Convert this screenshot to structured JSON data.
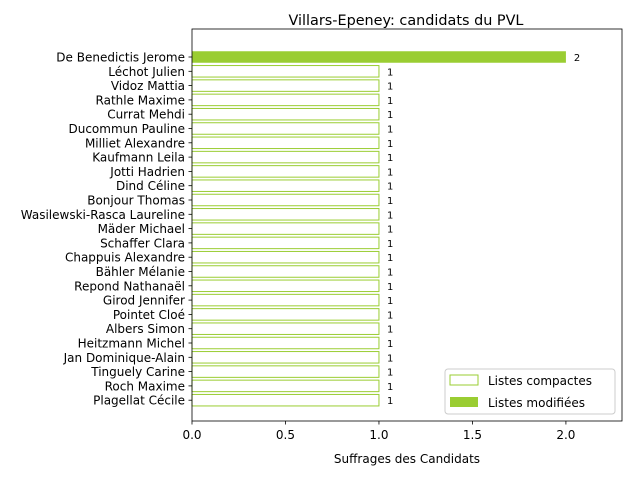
{
  "chart_data": {
    "type": "bar",
    "orientation": "horizontal",
    "title": "Villars-Epeney: candidats du PVL",
    "xlabel": "Suffrages des Candidats",
    "ylabel": "",
    "xlim": [
      0,
      2.3
    ],
    "xticks": [
      "0.0",
      "0.5",
      "1.0",
      "1.5",
      "2.0"
    ],
    "xtick_values": [
      0,
      0.5,
      1.0,
      1.5,
      2.0
    ],
    "grid": false,
    "legend_position": "lower-right",
    "categories": [
      "De Benedictis Jerome",
      "Léchot Julien",
      "Vidoz Mattia",
      "Rathle Maxime",
      "Currat Mehdi",
      "Ducommun Pauline",
      "Milliet Alexandre",
      "Kaufmann Leila",
      "Jotti Hadrien",
      "Dind Céline",
      "Bonjour Thomas",
      "Wasilewski-Rasca Laureline",
      "Mäder Michael",
      "Schaffer Clara",
      "Chappuis Alexandre",
      "Bähler Mélanie",
      "Repond Nathanaël",
      "Girod Jennifer",
      "Pointet Cloé",
      "Albers Simon",
      "Heitzmann Michel",
      "Jan Dominique-Alain",
      "Tinguely Carine",
      "Roch Maxime",
      "Plagellat Cécile"
    ],
    "series": [
      {
        "name": "Listes compactes",
        "color": "#9acd32",
        "style": "outline",
        "values": [
          0,
          1,
          1,
          1,
          1,
          1,
          1,
          1,
          1,
          1,
          1,
          1,
          1,
          1,
          1,
          1,
          1,
          1,
          1,
          1,
          1,
          1,
          1,
          1,
          1
        ]
      },
      {
        "name": "Listes modifiées",
        "color": "#9acd32",
        "style": "filled",
        "values": [
          2,
          0,
          0,
          0,
          0,
          0,
          0,
          0,
          0,
          0,
          0,
          0,
          0,
          0,
          0,
          0,
          0,
          0,
          0,
          0,
          0,
          0,
          0,
          0,
          0
        ]
      }
    ],
    "data_labels": [
      "2",
      "1",
      "1",
      "1",
      "1",
      "1",
      "1",
      "1",
      "1",
      "1",
      "1",
      "1",
      "1",
      "1",
      "1",
      "1",
      "1",
      "1",
      "1",
      "1",
      "1",
      "1",
      "1",
      "1",
      "1"
    ]
  }
}
